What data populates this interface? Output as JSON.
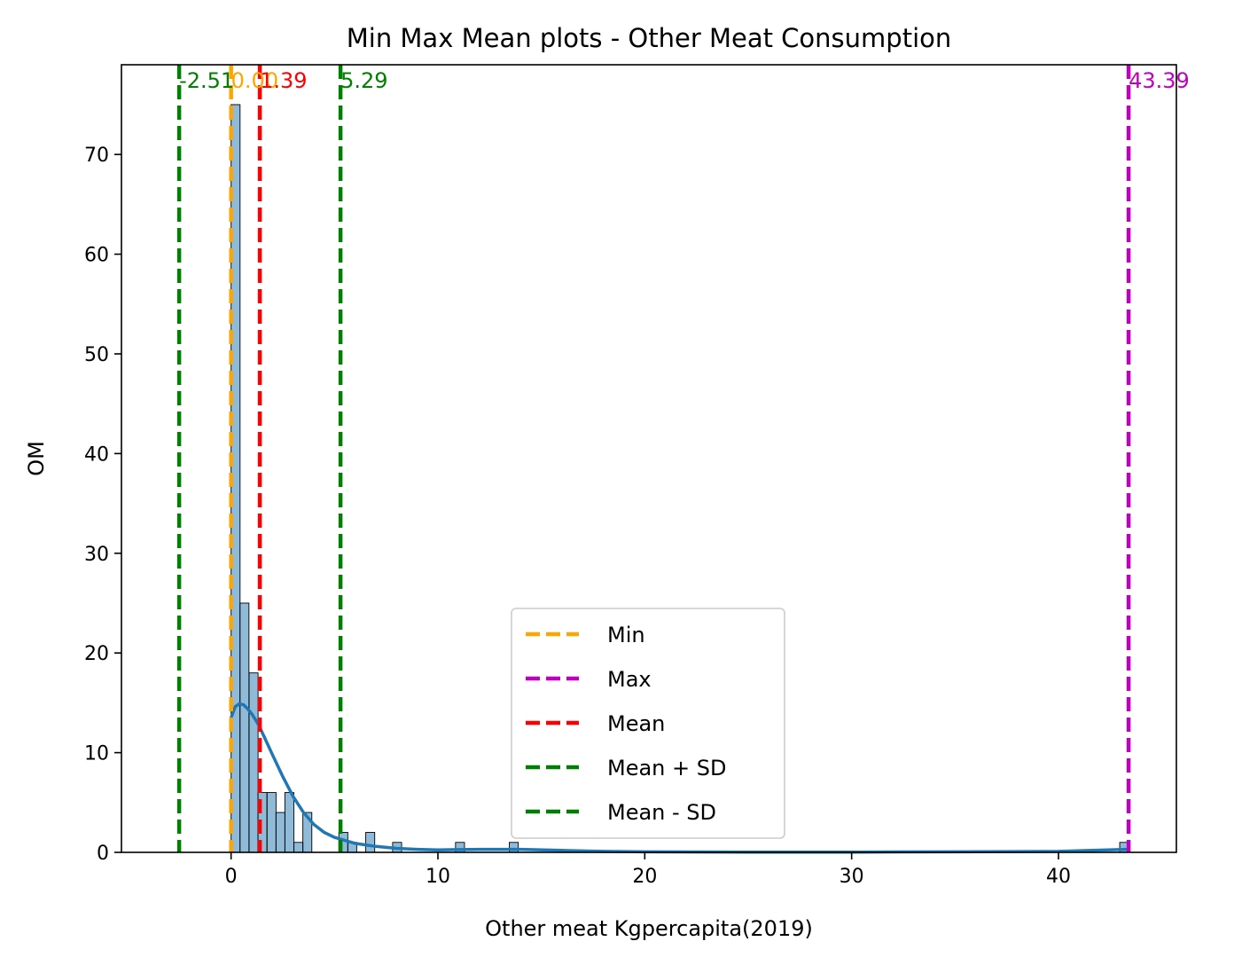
{
  "chart_data": {
    "type": "histogram",
    "title": "Min Max Mean plots - Other Meat Consumption",
    "xlabel": "Other meat Kgpercapita(2019)",
    "ylabel": "OM",
    "xlim": [
      -5.3,
      45.7
    ],
    "ylim": [
      0,
      79
    ],
    "x_ticks": [
      0,
      10,
      20,
      30,
      40
    ],
    "y_ticks": [
      0,
      10,
      20,
      30,
      40,
      50,
      60,
      70
    ],
    "grid": false,
    "legend_position": "lower-center",
    "bin_width": 0.434,
    "bins": [
      {
        "x0": 0.0,
        "count": 75
      },
      {
        "x0": 0.43,
        "count": 25
      },
      {
        "x0": 0.87,
        "count": 18
      },
      {
        "x0": 1.3,
        "count": 6
      },
      {
        "x0": 1.74,
        "count": 6
      },
      {
        "x0": 2.17,
        "count": 4
      },
      {
        "x0": 2.6,
        "count": 6
      },
      {
        "x0": 3.04,
        "count": 1
      },
      {
        "x0": 3.47,
        "count": 4
      },
      {
        "x0": 3.9,
        "count": 0
      },
      {
        "x0": 4.34,
        "count": 0
      },
      {
        "x0": 4.77,
        "count": 0
      },
      {
        "x0": 5.21,
        "count": 2
      },
      {
        "x0": 5.64,
        "count": 1
      },
      {
        "x0": 6.07,
        "count": 0
      },
      {
        "x0": 6.51,
        "count": 2
      },
      {
        "x0": 6.94,
        "count": 0
      },
      {
        "x0": 7.37,
        "count": 0
      },
      {
        "x0": 7.81,
        "count": 1
      },
      {
        "x0": 10.85,
        "count": 1
      },
      {
        "x0": 13.45,
        "count": 1
      },
      {
        "x0": 42.96,
        "count": 1
      }
    ],
    "kde": {
      "x": [
        0,
        0.2,
        0.4,
        0.6,
        0.8,
        1.0,
        1.3,
        1.6,
        2.0,
        2.5,
        3.0,
        3.5,
        4.0,
        4.5,
        5.0,
        6.0,
        7.0,
        8.0,
        9.0,
        10,
        12,
        14,
        16,
        18,
        20,
        25,
        30,
        35,
        40,
        43.4
      ],
      "y": [
        13.5,
        14.6,
        14.9,
        14.8,
        14.4,
        13.9,
        12.9,
        11.6,
        9.8,
        7.6,
        5.6,
        4.0,
        2.8,
        2.0,
        1.5,
        0.9,
        0.6,
        0.4,
        0.3,
        0.25,
        0.3,
        0.3,
        0.2,
        0.1,
        0.05,
        0.03,
        0.03,
        0.05,
        0.1,
        0.3
      ]
    },
    "reference_lines": [
      {
        "key": "min",
        "x": 0.0,
        "color": "#ffa500"
      },
      {
        "key": "max",
        "x": 43.39,
        "color": "#bf00bf"
      },
      {
        "key": "mean",
        "x": 1.39,
        "color": "#ff0000"
      },
      {
        "key": "plus_sd",
        "x": 5.29,
        "color": "#008000"
      },
      {
        "key": "minus_sd",
        "x": -2.51,
        "color": "#008000"
      }
    ],
    "annotations": [
      {
        "key": "minus_sd",
        "x": -2.51,
        "text": "-2.51",
        "color": "#008000"
      },
      {
        "key": "min",
        "x": 0.0,
        "text": "0.00",
        "color": "#ffa500"
      },
      {
        "key": "mean",
        "x": 1.39,
        "text": "1.39",
        "color": "#ff0000"
      },
      {
        "key": "plus_sd",
        "x": 5.29,
        "text": "5.29",
        "color": "#008000"
      },
      {
        "key": "max",
        "x": 43.39,
        "text": "43.39",
        "color": "#bf00bf"
      }
    ],
    "legend": [
      {
        "key": "min",
        "label": "Min",
        "color": "#ffa500"
      },
      {
        "key": "max",
        "label": "Max",
        "color": "#bf00bf"
      },
      {
        "key": "mean",
        "label": "Mean",
        "color": "#ff0000"
      },
      {
        "key": "plus_sd",
        "label": "Mean + SD",
        "color": "#008000"
      },
      {
        "key": "minus_sd",
        "label": "Mean - SD",
        "color": "#008000"
      }
    ],
    "bar_color": "#1f77b4",
    "kde_color": "#1f77b4"
  }
}
